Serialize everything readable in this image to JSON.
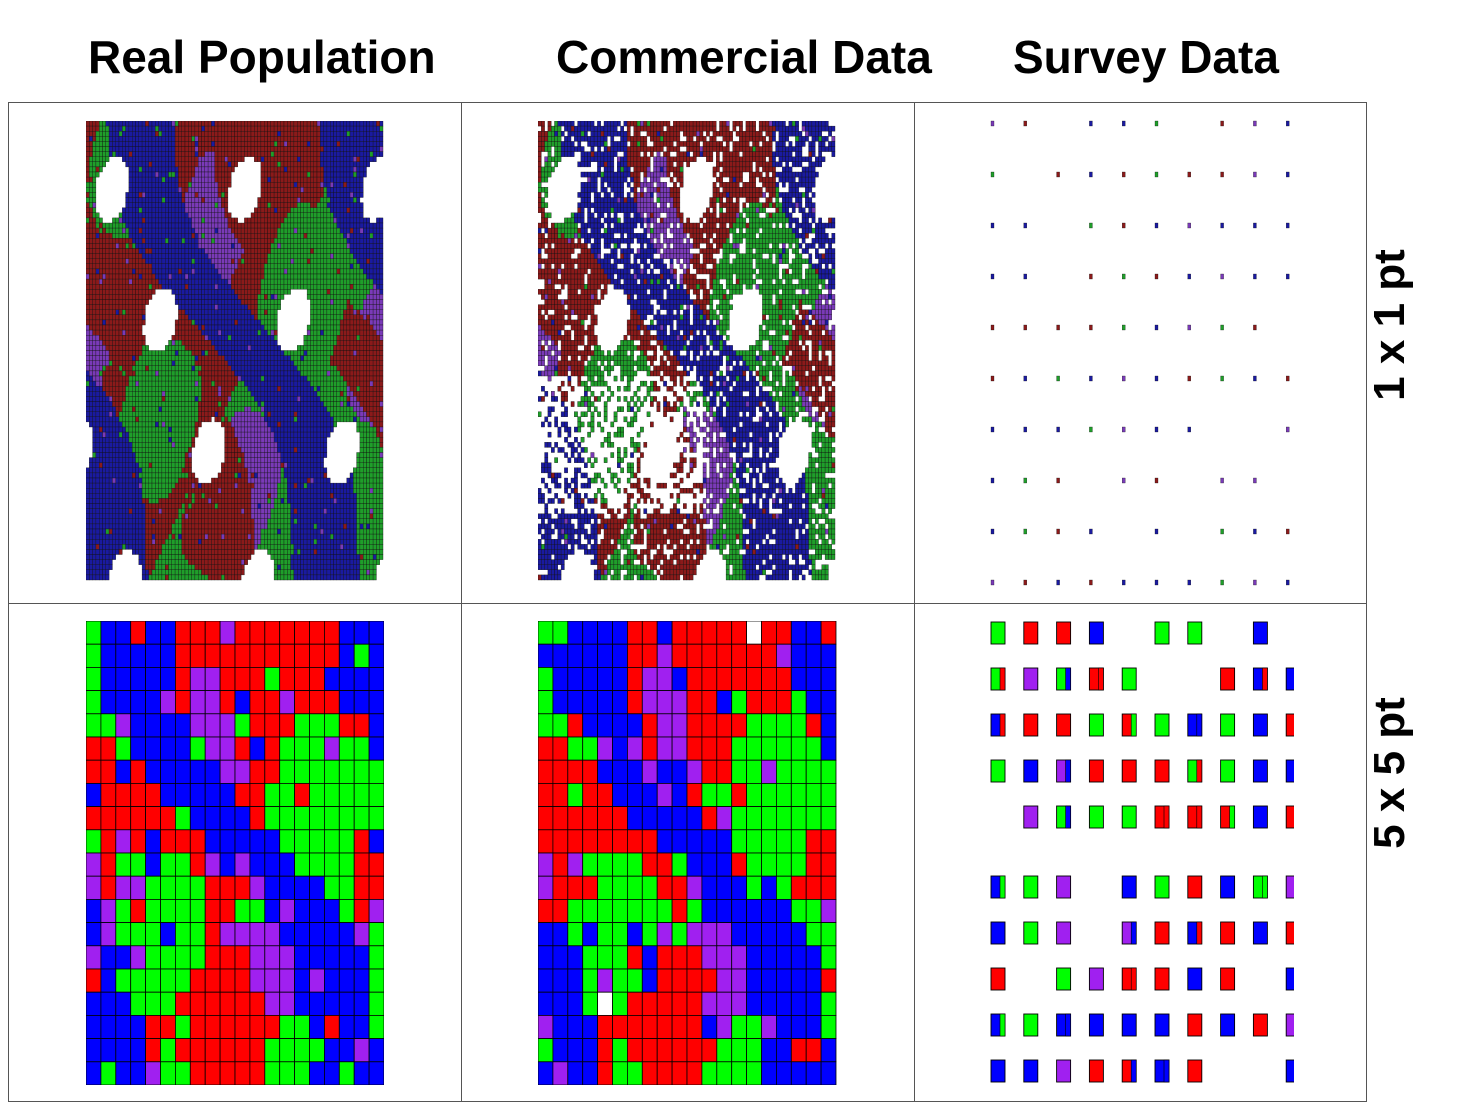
{
  "columns": [
    "Real Population",
    "Commercial Data",
    "Survey Data"
  ],
  "rows": [
    "1 x 1 pt",
    "5 x 5 pt"
  ],
  "colors": {
    "fine": {
      "red": "#8b1a1a",
      "blue": "#1a1aa0",
      "green": "#1f9e2a",
      "purple": "#7a3ab8"
    },
    "coarse": {
      "red": "#ff0000",
      "blue": "#0000ff",
      "green": "#00ff00",
      "purple": "#a020f0"
    }
  },
  "legend_note": ""
}
